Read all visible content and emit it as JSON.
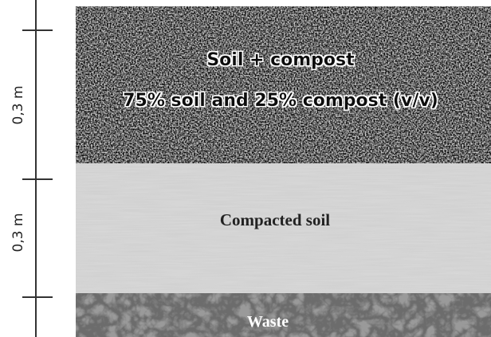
{
  "scale": {
    "labels": [
      "0,3 m",
      "0,3 m"
    ]
  },
  "layers": [
    {
      "title": "Soil + compost",
      "subtitle": "75% soil and 25% compost (v/v)"
    },
    {
      "title": "Compacted soil"
    },
    {
      "title": "Waste"
    }
  ]
}
